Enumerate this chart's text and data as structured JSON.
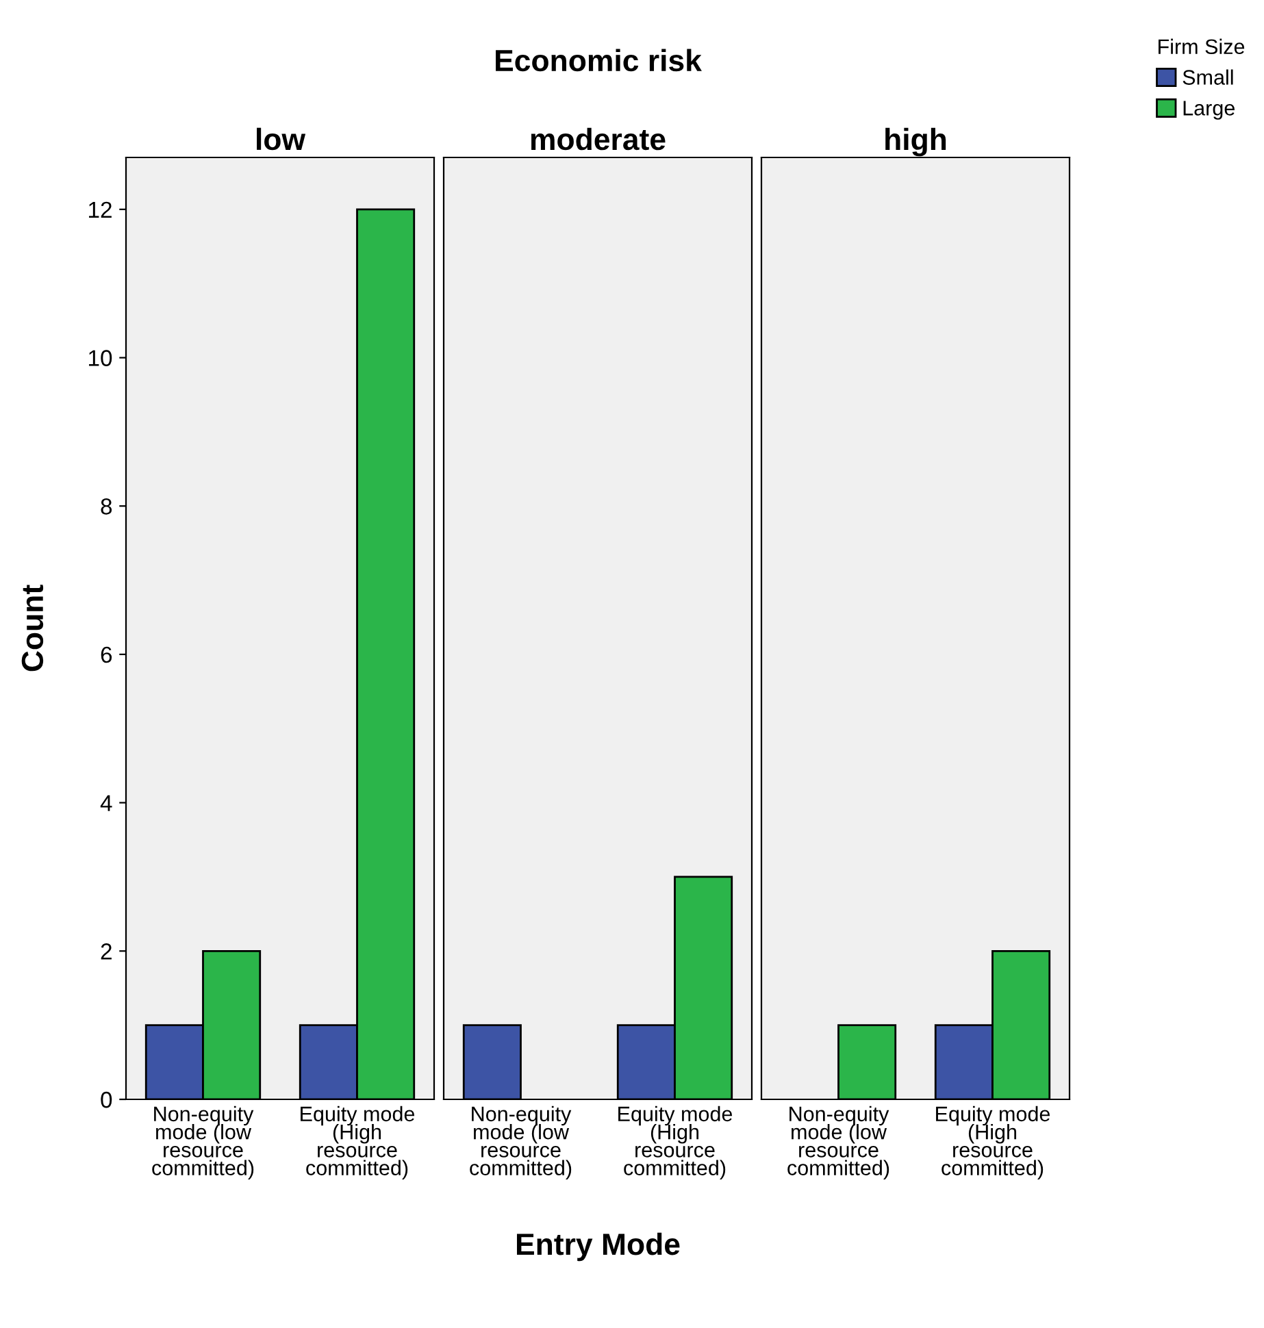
{
  "chart_data": [
    {
      "type": "bar",
      "title": "low",
      "ylabel": "Count",
      "legend_title": "Firm Size",
      "legend": "top right",
      "categories": [
        "Non-equity\nmode (low\nresource\ncommitted)",
        "Equity mode\n(High\nresource\ncommitted)"
      ],
      "series": [
        {
          "name": "Small",
          "color": "#3d54a5",
          "values": [
            1,
            1
          ]
        },
        {
          "name": "Large",
          "color": "#2bb54a",
          "values": [
            2,
            12
          ]
        }
      ],
      "ylim": [
        0,
        12.7
      ],
      "yticks": [
        0,
        2,
        4,
        6,
        8,
        10,
        12
      ],
      "grid": false
    },
    {
      "type": "bar",
      "title": "moderate",
      "xlabel": "Entry Mode",
      "annotations": [
        "Economic risk"
      ],
      "categories": [
        "Non-equity\nmode (low\nresource\ncommitted)",
        "Equity mode\n(High\nresource\ncommitted)"
      ],
      "series": [
        {
          "color": "#3d54a5",
          "values": [
            1,
            1
          ]
        },
        {
          "color": "#2bb54a",
          "values": [
            null,
            3
          ]
        }
      ],
      "ylim": [
        0,
        12.7
      ],
      "yticks": [
        0,
        2,
        4,
        6,
        8,
        10,
        12
      ],
      "tick_labels": "x",
      "grid": false
    },
    {
      "type": "bar",
      "title": "high",
      "categories": [
        "Non-equity\nmode (low\nresource\ncommitted)",
        "Equity mode\n(High\nresource\ncommitted)"
      ],
      "series": [
        {
          "color": "#3d54a5",
          "values": [
            null,
            1
          ]
        },
        {
          "color": "#2bb54a",
          "values": [
            1,
            2
          ]
        }
      ],
      "ylim": [
        0,
        12.7
      ],
      "yticks": [
        0,
        2,
        4,
        6,
        8,
        10,
        12
      ],
      "tick_labels": "x",
      "grid": false
    }
  ]
}
